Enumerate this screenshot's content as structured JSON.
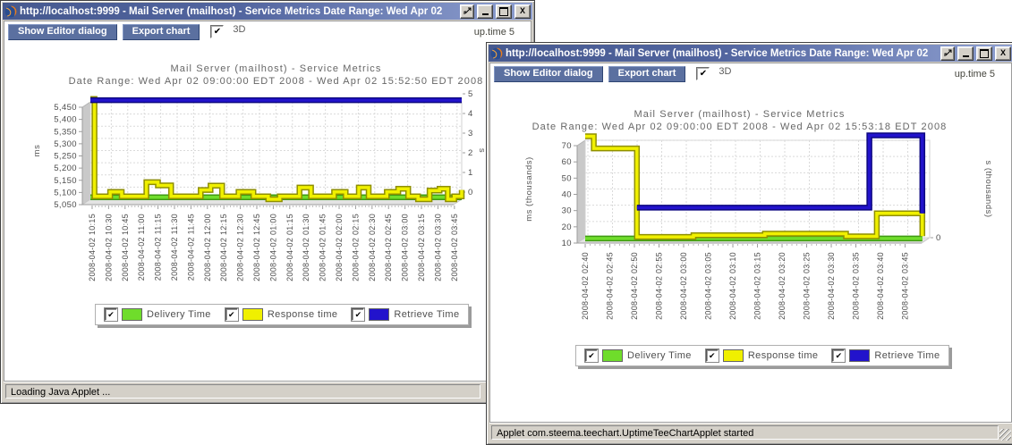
{
  "ui": {
    "titlebar_gradient_left": "#46598f",
    "titlebar_gradient_right": "#8e9fd0",
    "toolbar_button_color": "#5b70a0",
    "window_chrome_color": "#d4d0c8"
  },
  "windows": [
    {
      "title": "http://localhost:9999 - Mail Server (mailhost) - Service Metrics Date Range: Wed Apr 02",
      "toolbar": {
        "editor_btn": "Show Editor dialog",
        "export_btn": "Export chart",
        "threed_check": "✔",
        "threed_label": "3D",
        "brand": "up.time 5"
      },
      "status": "Loading Java Applet ..."
    },
    {
      "title": "http://localhost:9999 - Mail Server (mailhost) - Service Metrics Date Range: Wed Apr 02",
      "toolbar": {
        "editor_btn": "Show Editor dialog",
        "export_btn": "Export chart",
        "threed_check": "✔",
        "threed_label": "3D",
        "brand": "up.time 5"
      },
      "status": "Applet com.steema.teechart.UptimeTeeChartApplet started"
    }
  ],
  "chart_data": [
    {
      "type": "line",
      "title": "Mail Server (mailhost) - Service Metrics",
      "subtitle": "Date Range: Wed Apr 02 09:00:00 EDT 2008 - Wed Apr 02 15:52:50 EDT 2008",
      "ylabel": "ms",
      "y2label": "s",
      "ylim": [
        5050,
        5450
      ],
      "yticks": [
        5450,
        5400,
        5350,
        5300,
        5250,
        5200,
        5150,
        5100,
        5050
      ],
      "ytick_labels": [
        "5,450",
        "5,400",
        "5,350",
        "5,300",
        "5,250",
        "5,200",
        "5,150",
        "5,100",
        "5,050"
      ],
      "y2ticks": [
        "5",
        "4",
        "3",
        "2",
        "1",
        "0"
      ],
      "grid": true,
      "legend_position": "bottom",
      "x_labels": [
        "2008-04-02 10:15",
        "2008-04-02 10:30",
        "2008-04-02 10:45",
        "2008-04-02 11:00",
        "2008-04-02 11:15",
        "2008-04-02 11:30",
        "2008-04-02 11:45",
        "2008-04-02 12:00",
        "2008-04-02 12:15",
        "2008-04-02 12:30",
        "2008-04-02 12:45",
        "2008-04-02 01:00",
        "2008-04-02 01:15",
        "2008-04-02 01:30",
        "2008-04-02 01:45",
        "2008-04-02 02:00",
        "2008-04-02 02:15",
        "2008-04-02 02:30",
        "2008-04-02 02:45",
        "2008-04-02 03:00",
        "2008-04-02 03:15",
        "2008-04-02 03:30",
        "2008-04-02 03:45"
      ],
      "series": [
        {
          "name": "Delivery Time",
          "color": "#6fdd2b",
          "outline": "#3f9a12",
          "points": [
            [
              0,
              5058
            ],
            [
              22.55,
              5058
            ]
          ]
        },
        {
          "name": "Response time",
          "color": "#f0f000",
          "outline": "#8f8f00",
          "points": [
            [
              0,
              5462
            ],
            [
              0.25,
              5462
            ],
            [
              0.25,
              5062
            ],
            [
              1.2,
              5062
            ],
            [
              1.2,
              5080
            ],
            [
              1.9,
              5080
            ],
            [
              1.9,
              5062
            ],
            [
              3.4,
              5062
            ],
            [
              3.4,
              5120
            ],
            [
              4.1,
              5120
            ],
            [
              4.1,
              5107
            ],
            [
              4.9,
              5107
            ],
            [
              4.9,
              5062
            ],
            [
              6.7,
              5062
            ],
            [
              6.7,
              5088
            ],
            [
              7.3,
              5088
            ],
            [
              7.3,
              5106
            ],
            [
              8.0,
              5106
            ],
            [
              8.0,
              5062
            ],
            [
              9.0,
              5062
            ],
            [
              9.0,
              5080
            ],
            [
              9.9,
              5080
            ],
            [
              9.9,
              5062
            ],
            [
              10.8,
              5062
            ],
            [
              10.8,
              5050
            ],
            [
              11.5,
              5050
            ],
            [
              11.5,
              5062
            ],
            [
              12.7,
              5062
            ],
            [
              12.7,
              5098
            ],
            [
              13.4,
              5098
            ],
            [
              13.4,
              5062
            ],
            [
              14.8,
              5062
            ],
            [
              14.8,
              5080
            ],
            [
              15.5,
              5080
            ],
            [
              15.5,
              5062
            ],
            [
              16.3,
              5062
            ],
            [
              16.3,
              5098
            ],
            [
              16.9,
              5098
            ],
            [
              16.9,
              5062
            ],
            [
              18.0,
              5062
            ],
            [
              18.0,
              5080
            ],
            [
              18.7,
              5080
            ],
            [
              18.7,
              5093
            ],
            [
              19.3,
              5093
            ],
            [
              19.3,
              5062
            ],
            [
              19.9,
              5062
            ],
            [
              19.9,
              5050
            ],
            [
              20.6,
              5050
            ],
            [
              20.6,
              5086
            ],
            [
              21.2,
              5086
            ],
            [
              21.2,
              5093
            ],
            [
              21.7,
              5093
            ],
            [
              21.7,
              5050
            ],
            [
              22.1,
              5050
            ],
            [
              22.1,
              5062
            ],
            [
              22.55,
              5062
            ],
            [
              22.55,
              5088
            ]
          ]
        },
        {
          "name": "Retrieve Time",
          "color": "#2213cc",
          "outline": "#0d0780",
          "points": [
            [
              0,
              5457
            ],
            [
              22.55,
              5457
            ]
          ]
        }
      ],
      "legend": [
        {
          "label": "Delivery Time",
          "color": "#6fdd2b"
        },
        {
          "label": "Response time",
          "color": "#f0f000"
        },
        {
          "label": "Retrieve Time",
          "color": "#2213cc"
        }
      ]
    },
    {
      "type": "line",
      "title": "Mail Server (mailhost) - Service Metrics",
      "subtitle": "Date Range: Wed Apr 02 09:00:00 EDT 2008 - Wed Apr 02 15:53:18 EDT 2008",
      "ylabel": "ms (thousands)",
      "y2label": "s (thousands)",
      "ylim": [
        10,
        70
      ],
      "yticks": [
        70,
        60,
        50,
        40,
        30,
        20,
        10
      ],
      "ytick_labels": [
        "70",
        "60",
        "50",
        "40",
        "30",
        "20",
        "10"
      ],
      "y2ticks": [
        "0"
      ],
      "grid": true,
      "legend_position": "bottom",
      "x_labels": [
        "2008-04-02 02:40",
        "2008-04-02 02:45",
        "2008-04-02 02:50",
        "2008-04-02 02:55",
        "2008-04-02 03:00",
        "2008-04-02 03:05",
        "2008-04-02 03:10",
        "2008-04-02 03:15",
        "2008-04-02 03:20",
        "2008-04-02 03:25",
        "2008-04-02 03:30",
        "2008-04-02 03:35",
        "2008-04-02 03:40",
        "2008-04-02 03:45"
      ],
      "series": [
        {
          "name": "Delivery Time",
          "color": "#6fdd2b",
          "outline": "#3f9a12",
          "points": [
            [
              0,
              9.5
            ],
            [
              13.7,
              9.5
            ]
          ]
        },
        {
          "name": "Response time",
          "color": "#f0f000",
          "outline": "#8f8f00",
          "points": [
            [
              0,
              72.5
            ],
            [
              0.35,
              72.5
            ],
            [
              0.35,
              65
            ],
            [
              2.1,
              65
            ],
            [
              2.1,
              10.5
            ],
            [
              4.4,
              10.5
            ],
            [
              4.4,
              11.5
            ],
            [
              7.3,
              11.5
            ],
            [
              7.3,
              12.5
            ],
            [
              10.6,
              12.5
            ],
            [
              10.6,
              10.8
            ],
            [
              11.85,
              10.8
            ],
            [
              11.85,
              25
            ],
            [
              13.7,
              25
            ],
            [
              13.7,
              11
            ]
          ]
        },
        {
          "name": "Retrieve Time",
          "color": "#2213cc",
          "outline": "#0d0780",
          "points": [
            [
              2.1,
              28.5
            ],
            [
              11.55,
              28.5
            ],
            [
              11.55,
              73
            ],
            [
              13.7,
              73
            ],
            [
              13.7,
              25
            ]
          ]
        }
      ],
      "legend": [
        {
          "label": "Delivery Time",
          "color": "#6fdd2b"
        },
        {
          "label": "Response time",
          "color": "#f0f000"
        },
        {
          "label": "Retrieve Time",
          "color": "#2213cc"
        }
      ]
    }
  ]
}
